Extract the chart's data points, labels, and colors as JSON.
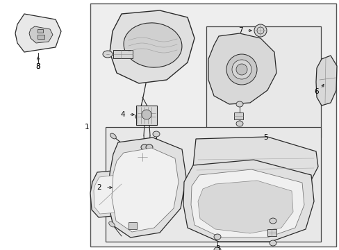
{
  "bg_color": "#f0f0f0",
  "line_color": "#2a2a2a",
  "fig_width": 4.89,
  "fig_height": 3.6,
  "dpi": 100
}
